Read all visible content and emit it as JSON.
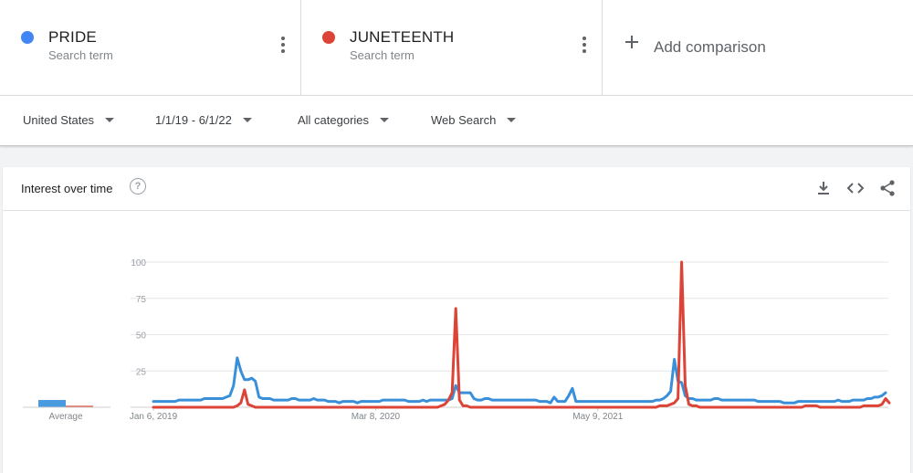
{
  "terms": [
    {
      "name": "PRIDE",
      "subtitle": "Search term",
      "color": "#4285f4"
    },
    {
      "name": "JUNETEENTH",
      "subtitle": "Search term",
      "color": "#db4437"
    }
  ],
  "add_comparison": "Add comparison",
  "filters": {
    "region": "United States",
    "date_range": "1/1/19 - 6/1/22",
    "category": "All categories",
    "search_type": "Web Search"
  },
  "card": {
    "title": "Interest over time",
    "help_glyph": "?",
    "icons": [
      "download-icon",
      "embed-icon",
      "share-icon"
    ]
  },
  "chart_data": {
    "type": "line",
    "title": "Interest over time",
    "y_ticks": [
      25,
      50,
      75,
      100
    ],
    "ylim": [
      0,
      100
    ],
    "x_tick_labels": [
      "Jan 6, 2019",
      "Mar 8, 2020",
      "May 9, 2021"
    ],
    "x_tick_week_index": [
      0,
      61,
      122
    ],
    "average_label": "Average",
    "averages": [
      {
        "name": "PRIDE",
        "value": 5
      },
      {
        "name": "JUNETEENTH",
        "value": 1
      }
    ],
    "grid": true,
    "series": [
      {
        "name": "PRIDE",
        "color": "#3a8fd9",
        "values": [
          4,
          4,
          4,
          4,
          4,
          4,
          4,
          5,
          5,
          5,
          5,
          5,
          5,
          5,
          6,
          6,
          6,
          6,
          6,
          6,
          7,
          8,
          15,
          34,
          25,
          19,
          19,
          20,
          18,
          7,
          6,
          6,
          6,
          5,
          5,
          5,
          5,
          5,
          6,
          6,
          5,
          5,
          5,
          5,
          6,
          5,
          5,
          5,
          4,
          4,
          4,
          3,
          4,
          4,
          4,
          4,
          3,
          4,
          4,
          4,
          4,
          4,
          4,
          5,
          5,
          5,
          5,
          5,
          5,
          5,
          4,
          4,
          4,
          4,
          5,
          4,
          5,
          5,
          5,
          5,
          5,
          5,
          6,
          15,
          10,
          10,
          10,
          10,
          6,
          5,
          5,
          6,
          6,
          5,
          5,
          5,
          5,
          5,
          5,
          5,
          5,
          5,
          5,
          5,
          5,
          5,
          4,
          4,
          4,
          3,
          7,
          4,
          4,
          4,
          8,
          13,
          4,
          4,
          4,
          4,
          4,
          4,
          4,
          4,
          4,
          4,
          4,
          4,
          4,
          4,
          4,
          4,
          4,
          4,
          4,
          4,
          4,
          4,
          5,
          5,
          6,
          8,
          11,
          33,
          18,
          17,
          8,
          6,
          6,
          5,
          5,
          5,
          5,
          5,
          6,
          6,
          5,
          5,
          5,
          5,
          5,
          5,
          5,
          5,
          5,
          5,
          4,
          4,
          4,
          4,
          4,
          4,
          4,
          3,
          3,
          3,
          3,
          4,
          4,
          4,
          4,
          4,
          4,
          4,
          4,
          4,
          4,
          4,
          5,
          4,
          4,
          4,
          5,
          5,
          5,
          5,
          6,
          6,
          7,
          7,
          8,
          10
        ]
      },
      {
        "name": "JUNETEENTH",
        "color": "#db4437",
        "values": [
          0,
          0,
          0,
          0,
          0,
          0,
          0,
          0,
          0,
          0,
          0,
          0,
          0,
          0,
          0,
          0,
          0,
          0,
          0,
          0,
          0,
          0,
          0,
          1,
          3,
          12,
          2,
          1,
          0,
          0,
          0,
          0,
          0,
          0,
          0,
          0,
          0,
          0,
          0,
          0,
          0,
          0,
          0,
          0,
          0,
          0,
          0,
          0,
          0,
          0,
          0,
          0,
          0,
          0,
          0,
          0,
          0,
          0,
          0,
          0,
          0,
          0,
          0,
          0,
          0,
          0,
          0,
          0,
          0,
          0,
          0,
          0,
          0,
          0,
          0,
          0,
          0,
          0,
          0,
          1,
          2,
          5,
          10,
          68,
          5,
          1,
          1,
          0,
          0,
          0,
          0,
          0,
          0,
          0,
          0,
          0,
          0,
          0,
          0,
          0,
          0,
          0,
          0,
          0,
          0,
          0,
          0,
          0,
          0,
          0,
          0,
          0,
          0,
          0,
          0,
          0,
          0,
          0,
          0,
          0,
          0,
          0,
          0,
          0,
          0,
          0,
          0,
          0,
          0,
          0,
          0,
          0,
          0,
          0,
          0,
          0,
          0,
          0,
          0,
          1,
          1,
          1,
          2,
          3,
          6,
          100,
          15,
          2,
          1,
          1,
          0,
          0,
          0,
          0,
          0,
          0,
          0,
          0,
          0,
          0,
          0,
          0,
          0,
          0,
          0,
          0,
          0,
          0,
          0,
          0,
          0,
          0,
          0,
          0,
          0,
          0,
          0,
          0,
          0,
          1,
          1,
          1,
          1,
          0,
          0,
          0,
          0,
          0,
          0,
          0,
          0,
          0,
          0,
          0,
          0,
          1,
          1,
          1,
          1,
          1,
          2,
          6,
          3
        ]
      }
    ]
  }
}
